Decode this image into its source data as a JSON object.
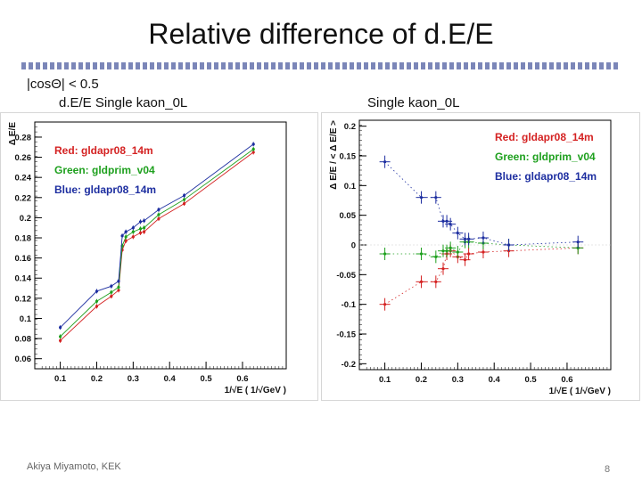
{
  "slide": {
    "title": "Relative difference of d.E/E",
    "condition": "|cosΘ| < 0.5",
    "footer": "Akiya Miyamoto, KEK",
    "page_number": "8"
  },
  "chart_data": [
    {
      "type": "line",
      "title": "d.E/E Single kaon_0L",
      "ylabel": "Δ E/E",
      "xlabel": "1/√E ( 1/√GeV )",
      "xlim": [
        0.03,
        0.72
      ],
      "ylim": [
        0.05,
        0.295
      ],
      "x_ticks": [
        "0.1",
        "0.2",
        "0.3",
        "0.4",
        "0.5",
        "0.6"
      ],
      "y_ticks": [
        "0.06",
        "0.08",
        "0.1",
        "0.12",
        "0.14",
        "0.16",
        "0.18",
        "0.2",
        "0.22",
        "0.24",
        "0.26",
        "0.28"
      ],
      "x": [
        0.1,
        0.2,
        0.24,
        0.26,
        0.27,
        0.28,
        0.3,
        0.32,
        0.33,
        0.37,
        0.44,
        0.63
      ],
      "legend_position": "top-left",
      "series": [
        {
          "name": "Red: gldapr08_14m",
          "color": "#d42222",
          "values": [
            0.078,
            0.112,
            0.122,
            0.128,
            0.168,
            0.177,
            0.181,
            0.185,
            0.186,
            0.199,
            0.214,
            0.265
          ]
        },
        {
          "name": "Green: gldprim_v04",
          "color": "#1ea01e",
          "values": [
            0.082,
            0.117,
            0.126,
            0.131,
            0.172,
            0.181,
            0.186,
            0.189,
            0.19,
            0.203,
            0.218,
            0.268
          ]
        },
        {
          "name": "Blue: gldapr08_14m",
          "color": "#1d2ea0",
          "values": [
            0.091,
            0.127,
            0.132,
            0.137,
            0.182,
            0.186,
            0.19,
            0.196,
            0.197,
            0.208,
            0.222,
            0.273
          ]
        }
      ]
    },
    {
      "type": "scatter",
      "title": "Single kaon_0L",
      "ylabel": "Δ E/E / < Δ E/E >",
      "xlabel": "1/√E ( 1/√GeV )",
      "xlim": [
        0.03,
        0.72
      ],
      "ylim": [
        -0.21,
        0.21
      ],
      "x_ticks": [
        "0.1",
        "0.2",
        "0.3",
        "0.4",
        "0.5",
        "0.6"
      ],
      "y_ticks": [
        "0.2",
        "0.15",
        "0.1",
        "0.05",
        "0",
        "-0.05",
        "-0.1",
        "-0.15",
        "-0.2"
      ],
      "x": [
        0.1,
        0.2,
        0.24,
        0.26,
        0.27,
        0.28,
        0.3,
        0.32,
        0.33,
        0.37,
        0.44,
        0.63
      ],
      "legend_position": "top-right",
      "series": [
        {
          "name": "Red: gldapr08_14m",
          "color": "#d42222",
          "values": [
            -0.1,
            -0.062,
            -0.062,
            -0.04,
            -0.015,
            -0.01,
            -0.02,
            -0.025,
            -0.015,
            -0.012,
            -0.01,
            -0.005
          ]
        },
        {
          "name": "Green: gldprim_v04",
          "color": "#1ea01e",
          "values": [
            -0.015,
            -0.015,
            -0.02,
            -0.01,
            -0.01,
            -0.005,
            -0.012,
            0.005,
            0.005,
            0.003,
            0.0,
            -0.005
          ]
        },
        {
          "name": "Blue: gldapr08_14m",
          "color": "#1d2ea0",
          "values": [
            0.14,
            0.08,
            0.08,
            0.04,
            0.04,
            0.035,
            0.02,
            0.01,
            0.01,
            0.012,
            0.0,
            0.005
          ]
        }
      ]
    }
  ]
}
